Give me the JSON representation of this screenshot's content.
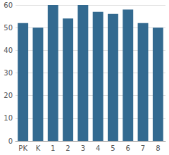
{
  "chart_data": {
    "type": "bar",
    "categories": [
      "PK",
      "K",
      "1",
      "2",
      "3",
      "4",
      "5",
      "6",
      "7",
      "8"
    ],
    "values": [
      52,
      50,
      60,
      54,
      60,
      57,
      56,
      58,
      52,
      50
    ],
    "color": "#336a90",
    "ylim": [
      0,
      60
    ],
    "yticks": [
      0,
      10,
      20,
      30,
      40,
      50,
      60
    ],
    "grid": true
  }
}
